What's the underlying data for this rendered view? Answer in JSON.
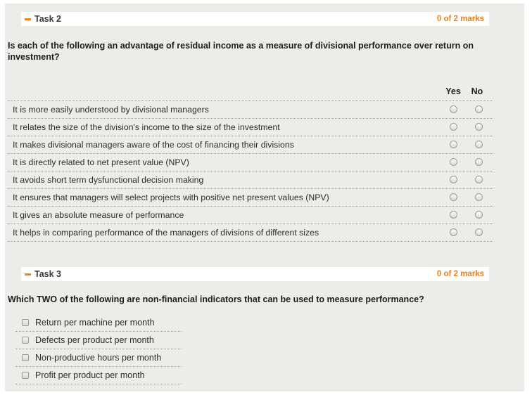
{
  "colors": {
    "accent_orange": "#f08519",
    "marks_orange": "#e8811c",
    "panel_background": "#edece8"
  },
  "tasks": [
    {
      "title": "Task 2",
      "marks": "0 of 2 marks",
      "collapse_icon": "minus-icon",
      "question": "Is each of the following an advantage of residual income as a measure of divisional performance over return on investment?",
      "columns": [
        "Yes",
        "No"
      ],
      "rows": [
        "It is more easily understood by divisional managers",
        "It relates the size of the division's income to the size of the investment",
        "It makes divisional managers aware of the cost of financing their divisions",
        "It is directly related to net present value (NPV)",
        "It avoids short term dysfunctional decision making",
        "It ensures that managers will select projects with positive net present values (NPV)",
        "It gives an absolute measure of performance",
        "It helps in comparing performance of the managers of divisions of different sizes"
      ]
    },
    {
      "title": "Task 3",
      "marks": "0 of 2 marks",
      "collapse_icon": "minus-icon",
      "question": "Which TWO of the following are non-financial indicators that can be used to measure performance?",
      "options": [
        "Return per machine per month",
        "Defects per product per month",
        "Non-productive hours per month",
        "Profit per product per month"
      ]
    }
  ]
}
